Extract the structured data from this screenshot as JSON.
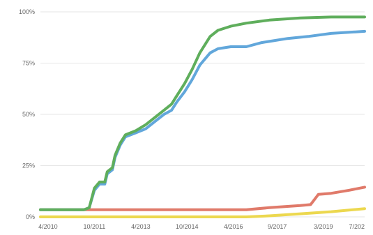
{
  "chart_data": {
    "type": "line",
    "title": "",
    "xlabel": "",
    "ylabel": "",
    "x_ticks": [
      "4/2010",
      "10/2011",
      "4/2013",
      "10/2014",
      "4/2016",
      "9/2017",
      "3/2019",
      "7/202"
    ],
    "x_tick_dates": [
      "2010-04-01",
      "2011-10-01",
      "2013-04-01",
      "2014-10-01",
      "2016-04-01",
      "2017-09-01",
      "2019-03-01",
      "2020-07-01"
    ],
    "xlim": [
      "2010-01-01",
      "2020-07-01"
    ],
    "y_ticks": [
      "0%",
      "25%",
      "50%",
      "75%",
      "100%"
    ],
    "y_tick_values": [
      0,
      25,
      50,
      75,
      100
    ],
    "ylim": [
      0,
      100
    ],
    "grid": "horizontal",
    "series": [
      {
        "color": "#5fae5c",
        "points": [
          [
            "2010-01-01",
            3.5
          ],
          [
            "2011-06-01",
            3.5
          ],
          [
            "2011-08-01",
            4.5
          ],
          [
            "2011-10-01",
            14
          ],
          [
            "2011-12-01",
            17
          ],
          [
            "2012-02-01",
            17
          ],
          [
            "2012-03-01",
            22
          ],
          [
            "2012-05-01",
            24
          ],
          [
            "2012-06-01",
            30
          ],
          [
            "2012-08-01",
            36
          ],
          [
            "2012-10-01",
            40
          ],
          [
            "2013-02-01",
            42
          ],
          [
            "2013-06-01",
            45
          ],
          [
            "2013-10-01",
            49
          ],
          [
            "2014-01-01",
            52
          ],
          [
            "2014-04-01",
            55
          ],
          [
            "2014-06-01",
            59
          ],
          [
            "2014-09-01",
            65
          ],
          [
            "2014-12-01",
            72
          ],
          [
            "2015-03-01",
            80
          ],
          [
            "2015-07-01",
            88
          ],
          [
            "2015-10-01",
            91
          ],
          [
            "2016-03-01",
            93
          ],
          [
            "2016-09-01",
            94.5
          ],
          [
            "2017-06-01",
            96
          ],
          [
            "2018-06-01",
            97
          ],
          [
            "2019-06-01",
            97.5
          ],
          [
            "2020-07-01",
            97.5
          ]
        ]
      },
      {
        "color": "#62a7db",
        "points": [
          [
            "2010-01-01",
            3.5
          ],
          [
            "2011-06-01",
            3.5
          ],
          [
            "2011-08-01",
            4.5
          ],
          [
            "2011-10-01",
            13
          ],
          [
            "2011-12-01",
            16
          ],
          [
            "2012-02-01",
            16
          ],
          [
            "2012-03-01",
            21
          ],
          [
            "2012-05-01",
            23
          ],
          [
            "2012-06-01",
            29
          ],
          [
            "2012-08-01",
            35
          ],
          [
            "2012-10-01",
            39
          ],
          [
            "2013-02-01",
            41
          ],
          [
            "2013-06-01",
            43
          ],
          [
            "2013-10-01",
            47
          ],
          [
            "2014-01-01",
            50
          ],
          [
            "2014-04-01",
            52
          ],
          [
            "2014-06-01",
            56
          ],
          [
            "2014-09-01",
            61
          ],
          [
            "2014-12-01",
            67
          ],
          [
            "2015-03-01",
            74
          ],
          [
            "2015-07-01",
            80
          ],
          [
            "2015-10-01",
            82
          ],
          [
            "2016-03-01",
            83
          ],
          [
            "2016-09-01",
            83
          ],
          [
            "2017-03-01",
            85
          ],
          [
            "2018-01-01",
            87
          ],
          [
            "2018-09-01",
            88
          ],
          [
            "2019-06-01",
            89.5
          ],
          [
            "2020-07-01",
            90.5
          ]
        ]
      },
      {
        "color": "#e07a6a",
        "points": [
          [
            "2010-01-01",
            3.5
          ],
          [
            "2016-09-01",
            3.5
          ],
          [
            "2017-06-01",
            4.5
          ],
          [
            "2018-06-01",
            5.5
          ],
          [
            "2018-10-01",
            6
          ],
          [
            "2019-01-01",
            11
          ],
          [
            "2019-06-01",
            11.5
          ],
          [
            "2020-01-01",
            13
          ],
          [
            "2020-07-01",
            14.5
          ]
        ]
      },
      {
        "color": "#ecd84f",
        "points": [
          [
            "2010-01-01",
            0
          ],
          [
            "2016-09-01",
            0
          ],
          [
            "2017-06-01",
            0.5
          ],
          [
            "2018-06-01",
            1.5
          ],
          [
            "2019-06-01",
            2.5
          ],
          [
            "2020-07-01",
            4
          ]
        ]
      }
    ]
  }
}
